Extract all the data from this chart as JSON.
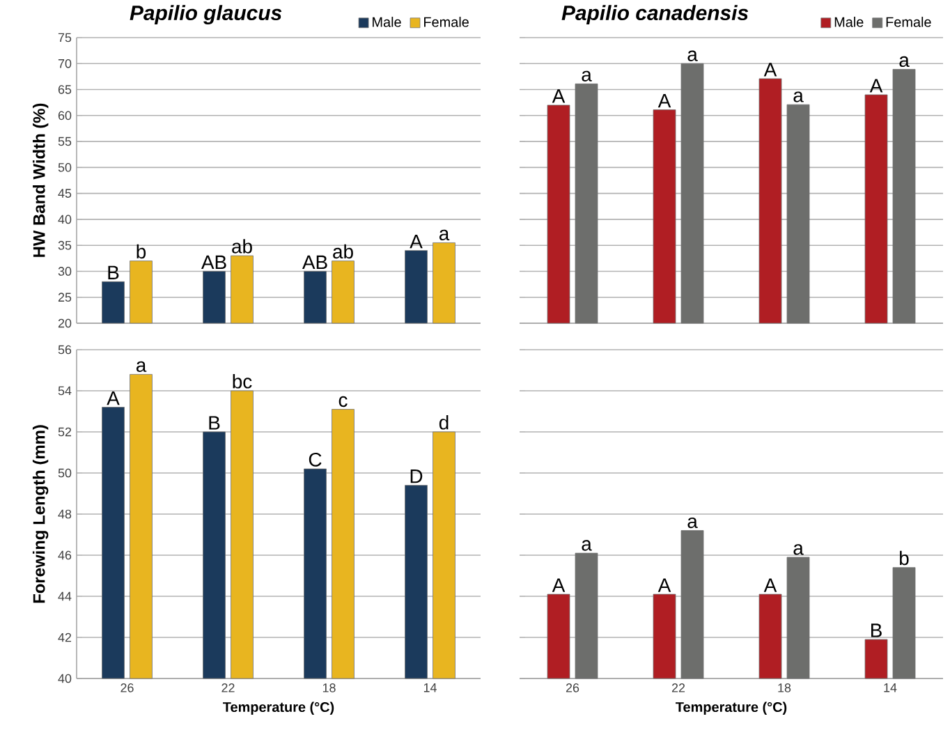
{
  "chart_data": [
    {
      "type": "bar",
      "title": "Papilio glaucus",
      "ylabel": "HW Band Width (%)",
      "categories": [
        "26",
        "22",
        "18",
        "14"
      ],
      "series": [
        {
          "name": "Male",
          "color": "#1b3a5c",
          "values": [
            28,
            30,
            30,
            34
          ]
        },
        {
          "name": "Female",
          "color": "#e8b520",
          "values": [
            32,
            33,
            32,
            35.5
          ]
        }
      ],
      "ylim": [
        20,
        75
      ],
      "yticks": [
        20,
        25,
        30,
        35,
        40,
        45,
        50,
        55,
        60,
        65,
        70,
        75
      ],
      "grid": "y",
      "legend": "top right",
      "tick_labels": "y",
      "annotations": [
        {
          "text": "B",
          "x": "26",
          "y": 28
        },
        {
          "text": "AB",
          "x": "22",
          "y": 30
        },
        {
          "text": "AB",
          "x": "18",
          "y": 30
        },
        {
          "text": "A",
          "x": "14",
          "y": 34
        },
        {
          "text": "b",
          "x": "26",
          "y": 32
        },
        {
          "text": "ab",
          "x": "22",
          "y": 33
        },
        {
          "text": "ab",
          "x": "18",
          "y": 32
        },
        {
          "text": "a",
          "x": "14",
          "y": 35.5
        }
      ]
    },
    {
      "type": "bar",
      "title": "Papilio canadensis",
      "categories": [
        "26",
        "22",
        "18",
        "14"
      ],
      "series": [
        {
          "name": "Male",
          "color": "#b01e23",
          "values": [
            62,
            61.1,
            67.1,
            64
          ]
        },
        {
          "name": "Female",
          "color": "#6d6e6c",
          "values": [
            66.1,
            70,
            62.1,
            68.9
          ]
        }
      ],
      "ylim": [
        20,
        75
      ],
      "yticks": [
        20,
        25,
        30,
        35,
        40,
        45,
        50,
        55,
        60,
        65,
        70,
        75
      ],
      "grid": "y",
      "legend": "top right",
      "tick_labels": false,
      "annotations": [
        {
          "text": "A",
          "x": "26",
          "y": 62
        },
        {
          "text": "A",
          "x": "22",
          "y": 61.1
        },
        {
          "text": "A",
          "x": "18",
          "y": 67.1
        },
        {
          "text": "A",
          "x": "14",
          "y": 64
        },
        {
          "text": "a",
          "x": "26",
          "y": 66.1
        },
        {
          "text": "a",
          "x": "22",
          "y": 70
        },
        {
          "text": "a",
          "x": "18",
          "y": 62.1
        },
        {
          "text": "a",
          "x": "14",
          "y": 68.9
        }
      ]
    },
    {
      "type": "bar",
      "xlabel": "Temperature (°C)",
      "ylabel": "Forewing Length (mm)",
      "categories": [
        "26",
        "22",
        "18",
        "14"
      ],
      "series": [
        {
          "color": "#1b3a5c",
          "values": [
            53.2,
            52,
            50.2,
            49.4
          ]
        },
        {
          "color": "#e8b520",
          "values": [
            54.8,
            54,
            53.1,
            52
          ]
        }
      ],
      "ylim": [
        40,
        56
      ],
      "yticks": [
        40,
        42,
        44,
        46,
        48,
        50,
        52,
        54,
        56
      ],
      "grid": "y",
      "annotations": [
        {
          "text": "A",
          "x": "26",
          "y": 53.2
        },
        {
          "text": "B",
          "x": "22",
          "y": 52
        },
        {
          "text": "C",
          "x": "18",
          "y": 50.2
        },
        {
          "text": "D",
          "x": "14",
          "y": 49.4
        },
        {
          "text": "a",
          "x": "26",
          "y": 54.8
        },
        {
          "text": "bc",
          "x": "22",
          "y": 54
        },
        {
          "text": "c",
          "x": "18",
          "y": 53.1
        },
        {
          "text": "d",
          "x": "14",
          "y": 52
        }
      ]
    },
    {
      "type": "bar",
      "xlabel": "Temperature (°C)",
      "categories": [
        "26",
        "22",
        "18",
        "14"
      ],
      "series": [
        {
          "color": "#b01e23",
          "values": [
            44.1,
            44.1,
            44.1,
            41.9
          ]
        },
        {
          "color": "#6d6e6c",
          "values": [
            46.1,
            47.2,
            45.9,
            45.4
          ]
        }
      ],
      "ylim": [
        40,
        56
      ],
      "yticks": [
        40,
        42,
        44,
        46,
        48,
        50,
        52,
        54,
        56
      ],
      "grid": "y",
      "tick_labels": "x",
      "annotations": [
        {
          "text": "A",
          "x": "26",
          "y": 44.1
        },
        {
          "text": "A",
          "x": "22",
          "y": 44.1
        },
        {
          "text": "A",
          "x": "18",
          "y": 44.1
        },
        {
          "text": "B",
          "x": "14",
          "y": 41.9
        },
        {
          "text": "a",
          "x": "26",
          "y": 46.1
        },
        {
          "text": "a",
          "x": "22",
          "y": 47.2
        },
        {
          "text": "a",
          "x": "18",
          "y": 45.9
        },
        {
          "text": "b",
          "x": "14",
          "y": 45.4
        }
      ]
    }
  ]
}
